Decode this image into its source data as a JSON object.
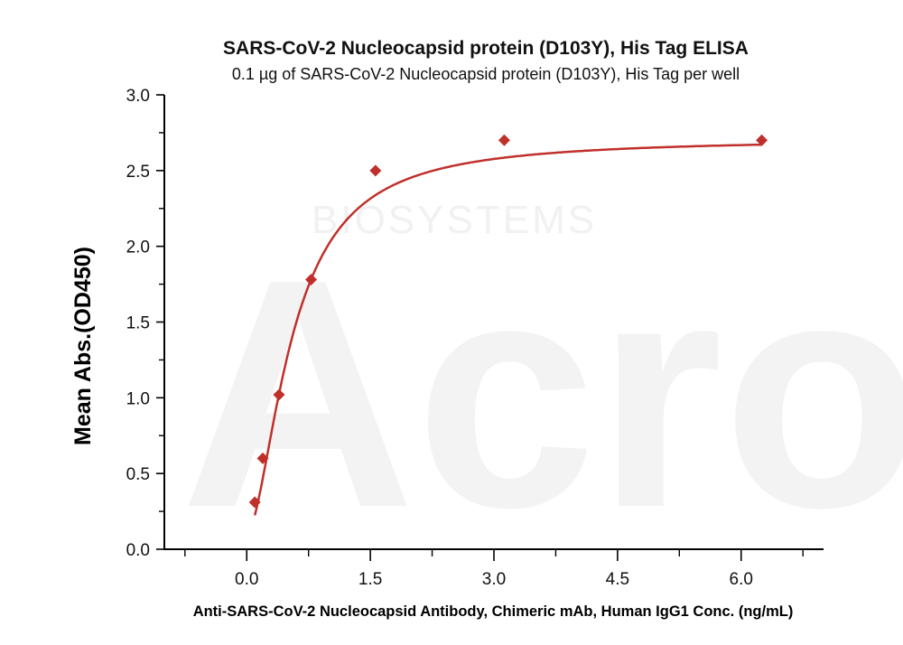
{
  "watermark": {
    "logo": "Acro",
    "sub": "BIOSYSTEMS"
  },
  "chart_data": {
    "type": "scatter",
    "title": "SARS-CoV-2 Nucleocapsid protein (D103Y), His Tag ELISA",
    "subtitle": "0.1 µg of SARS-CoV-2 Nucleocapsid protein (D103Y), His Tag per well",
    "xlabel": "Anti-SARS-CoV-2 Nucleocapsid Antibody, Chimeric mAb, Human IgG1 Conc. (ng/mL)",
    "ylabel": "Mean Abs.(OD450)",
    "xlim": [
      -1.0,
      7.0
    ],
    "ylim": [
      0.0,
      3.0
    ],
    "xticks": [
      0.0,
      1.5,
      3.0,
      4.5,
      6.0
    ],
    "xtick_labels": [
      "0.0",
      "1.5",
      "3.0",
      "4.5",
      "6.0"
    ],
    "xminor": [
      -0.75,
      0.75,
      2.25,
      3.75,
      5.25,
      6.75
    ],
    "yticks": [
      0.0,
      0.5,
      1.0,
      1.5,
      2.0,
      2.5,
      3.0
    ],
    "ytick_labels": [
      "0.0",
      "0.5",
      "1.0",
      "1.5",
      "2.0",
      "2.5",
      "3.0"
    ],
    "yminor": [
      0.25,
      0.75,
      1.25,
      1.75,
      2.25,
      2.75
    ],
    "grid": false,
    "series": [
      {
        "name": "ELISA",
        "color": "#c0302b",
        "marker": "diamond",
        "x": [
          0.098,
          0.195,
          0.391,
          0.781,
          1.5625,
          3.125,
          6.25
        ],
        "y": [
          0.31,
          0.6,
          1.02,
          1.78,
          2.5,
          2.7,
          2.7
        ],
        "fit": {
          "model": "4PL",
          "bottom": 0.1,
          "top": 2.71,
          "ec50": 0.554,
          "hill": 1.73
        }
      }
    ]
  }
}
